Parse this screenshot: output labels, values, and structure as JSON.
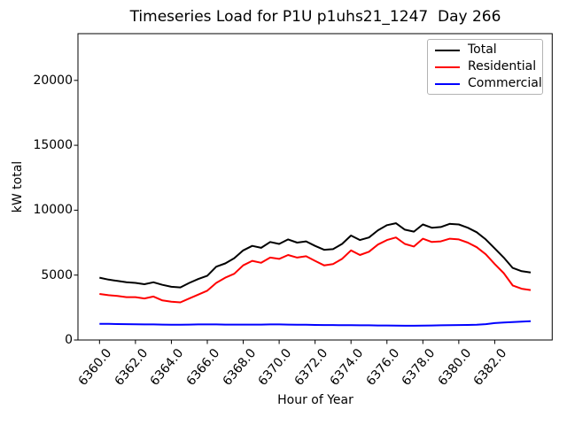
{
  "chart_data": {
    "type": "line",
    "title": "Timeseries Load for P1U p1uhs21_1247  Day 266",
    "xlabel": "Hour of Year",
    "ylabel": "kW total",
    "grid": false,
    "legend_position": "upper right",
    "xlim": [
      6358.8,
      6385.2
    ],
    "ylim": [
      0,
      23600
    ],
    "x_tick_values": [
      6360,
      6362,
      6364,
      6366,
      6368,
      6370,
      6372,
      6374,
      6376,
      6378,
      6380,
      6382
    ],
    "x_tick_labels": [
      "6360.0",
      "6362.0",
      "6364.0",
      "6366.0",
      "6368.0",
      "6370.0",
      "6372.0",
      "6374.0",
      "6376.0",
      "6378.0",
      "6380.0",
      "6382.0"
    ],
    "y_tick_values": [
      0,
      5000,
      10000,
      15000,
      20000
    ],
    "y_tick_labels": [
      "0",
      "5000",
      "10000",
      "15000",
      "20000"
    ],
    "x": [
      6360,
      6360.5,
      6361,
      6361.5,
      6362,
      6362.5,
      6363,
      6363.5,
      6364,
      6364.5,
      6365,
      6365.5,
      6366,
      6366.5,
      6367,
      6367.5,
      6368,
      6368.5,
      6369,
      6369.5,
      6370,
      6370.5,
      6371,
      6371.5,
      6372,
      6372.5,
      6373,
      6373.5,
      6374,
      6374.5,
      6375,
      6375.5,
      6376,
      6376.5,
      6377,
      6377.5,
      6378,
      6378.5,
      6379,
      6379.5,
      6380,
      6380.5,
      6381,
      6381.5,
      6382,
      6382.5,
      6383,
      6383.5,
      6384
    ],
    "series": [
      {
        "name": "Total",
        "color": "#000000",
        "values": [
          4800,
          4650,
          4550,
          4450,
          4400,
          4300,
          4450,
          4250,
          4100,
          4050,
          4400,
          4700,
          4950,
          5650,
          5900,
          6300,
          6900,
          7250,
          7100,
          7550,
          7400,
          7750,
          7500,
          7600,
          7250,
          6950,
          7000,
          7400,
          8050,
          7700,
          7900,
          8450,
          8850,
          9000,
          8500,
          8350,
          8900,
          8650,
          8700,
          8950,
          8900,
          8650,
          8300,
          7750,
          7050,
          6350,
          5550,
          5300,
          5200
        ]
      },
      {
        "name": "Residential",
        "color": "#ff0000",
        "values": [
          3550,
          3450,
          3400,
          3300,
          3300,
          3200,
          3350,
          3050,
          2950,
          2900,
          3200,
          3500,
          3800,
          4400,
          4800,
          5100,
          5750,
          6100,
          5950,
          6350,
          6250,
          6550,
          6350,
          6450,
          6100,
          5750,
          5850,
          6250,
          6900,
          6550,
          6800,
          7350,
          7700,
          7900,
          7400,
          7200,
          7800,
          7550,
          7600,
          7800,
          7750,
          7500,
          7150,
          6600,
          5850,
          5150,
          4200,
          3950,
          3850
        ]
      },
      {
        "name": "Commercial",
        "color": "#0000ff",
        "values": [
          1250,
          1240,
          1230,
          1220,
          1210,
          1200,
          1200,
          1190,
          1180,
          1180,
          1190,
          1200,
          1200,
          1200,
          1190,
          1190,
          1190,
          1190,
          1190,
          1200,
          1200,
          1190,
          1180,
          1170,
          1160,
          1150,
          1150,
          1140,
          1140,
          1130,
          1130,
          1120,
          1120,
          1110,
          1100,
          1100,
          1110,
          1120,
          1130,
          1140,
          1150,
          1160,
          1180,
          1220,
          1300,
          1350,
          1380,
          1420,
          1450
        ]
      }
    ]
  }
}
